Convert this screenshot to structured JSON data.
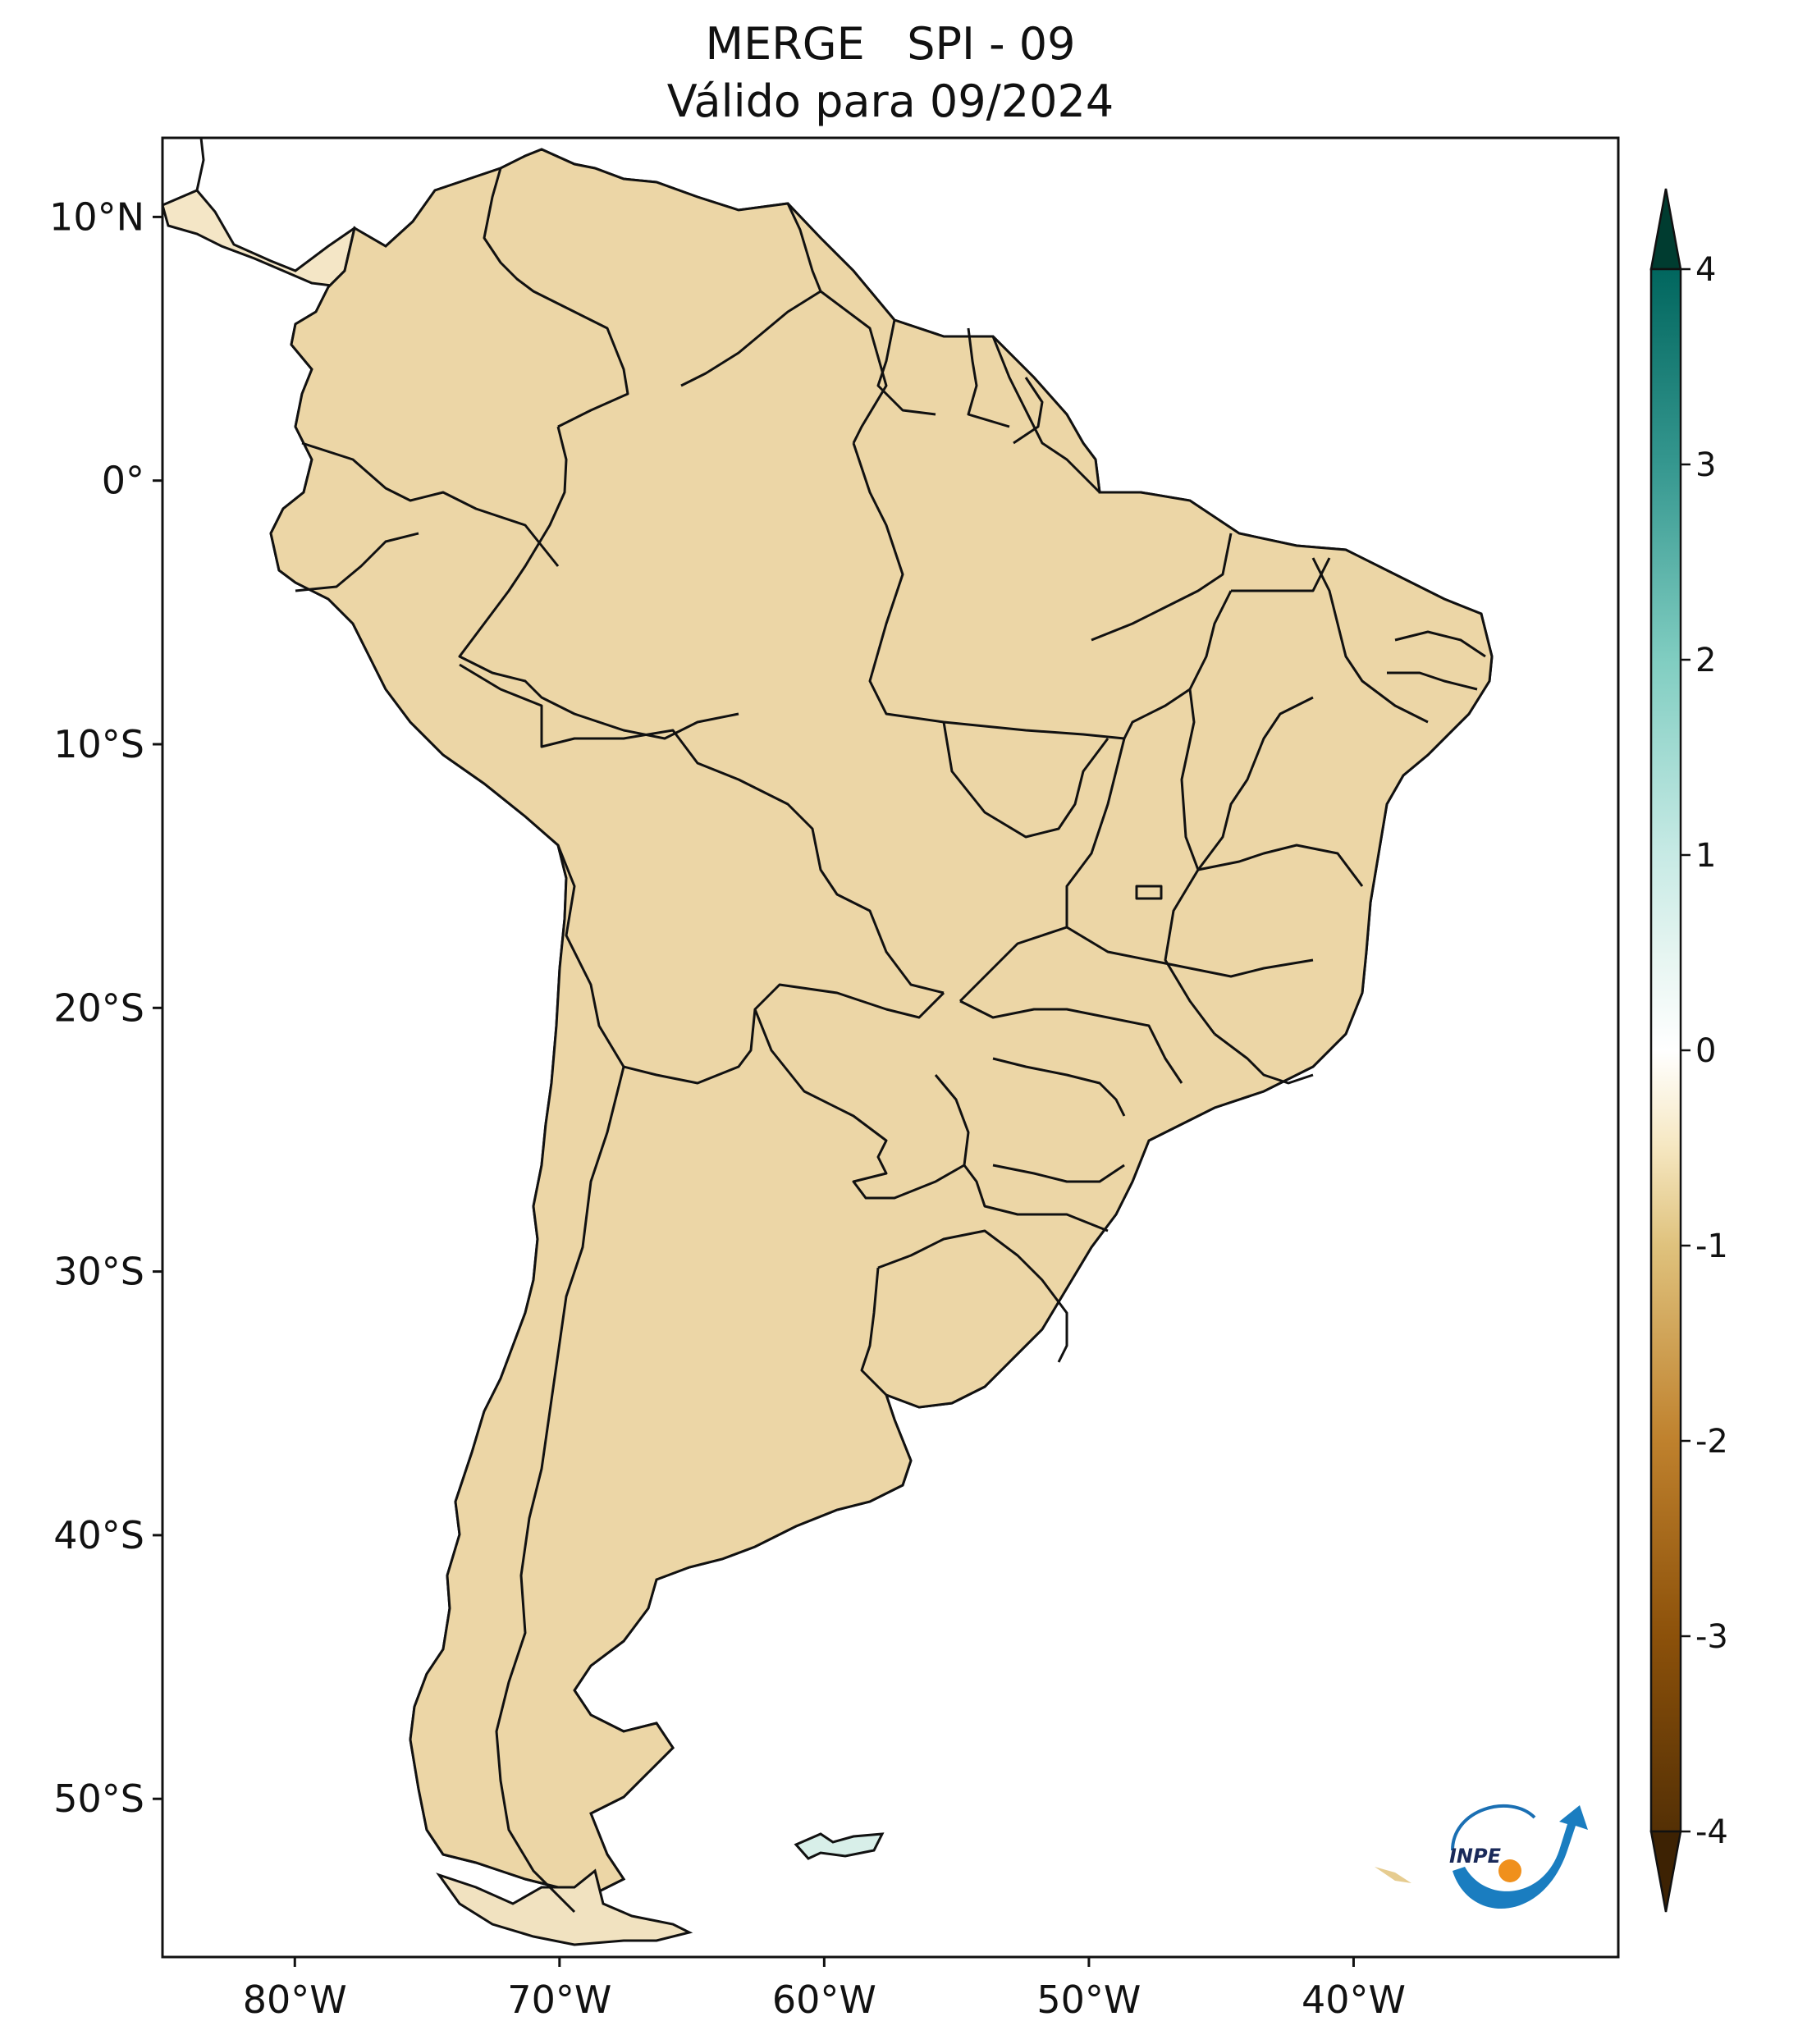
{
  "title": {
    "line1": "MERGE   SPI - 09",
    "line2": "Válido para 09/2024"
  },
  "map": {
    "lon_range": [
      -85,
      -30
    ],
    "lat_range": [
      -56,
      13
    ],
    "x_ticks": [
      {
        "value": -80,
        "label": "80°W"
      },
      {
        "value": -70,
        "label": "70°W"
      },
      {
        "value": -60,
        "label": "60°W"
      },
      {
        "value": -50,
        "label": "50°W"
      },
      {
        "value": -40,
        "label": "40°W"
      }
    ],
    "y_ticks": [
      {
        "value": 10,
        "label": "10°N"
      },
      {
        "value": 0,
        "label": "0°"
      },
      {
        "value": -10,
        "label": "10°S"
      },
      {
        "value": -20,
        "label": "20°S"
      },
      {
        "value": -30,
        "label": "30°S"
      },
      {
        "value": -40,
        "label": "40°S"
      },
      {
        "value": -50,
        "label": "50°S"
      }
    ]
  },
  "colorbar": {
    "range": [
      -4,
      4
    ],
    "extend": "both",
    "ticks": [
      {
        "value": 4,
        "label": "4"
      },
      {
        "value": 3,
        "label": "3"
      },
      {
        "value": 2,
        "label": "2"
      },
      {
        "value": 1,
        "label": "1"
      },
      {
        "value": 0,
        "label": "0"
      },
      {
        "value": -1,
        "label": "-1"
      },
      {
        "value": -2,
        "label": "-2"
      },
      {
        "value": -3,
        "label": "-3"
      },
      {
        "value": -4,
        "label": "-4"
      }
    ],
    "colors": {
      "neg4": "#543005",
      "neg3": "#8c510a",
      "neg2": "#bf812d",
      "neg1": "#dfc27d",
      "neg05": "#f6e8c3",
      "zero": "#ffffff",
      "pos05": "#e6f5f1",
      "pos1": "#c7eae5",
      "pos2": "#80cdc1",
      "pos3": "#35978f",
      "pos4": "#01665e",
      "max": "#003c30"
    }
  },
  "logo": {
    "text": "INPE"
  }
}
